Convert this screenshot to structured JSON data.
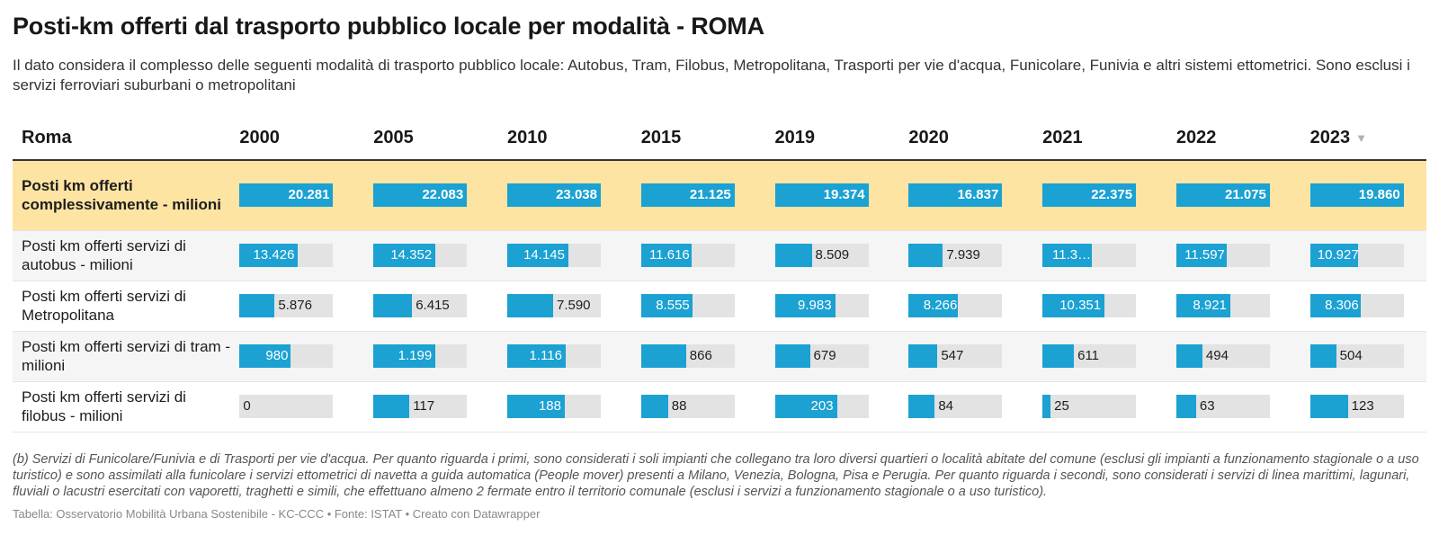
{
  "title": "Posti-km offerti dal trasporto pubblico locale per modalità - ROMA",
  "subtitle": "Il dato considera il complesso delle seguenti modalità di trasporto pubblico locale: Autobus, Tram, Filobus, Metropolitana, Trasporti per vie d'acqua, Funicolare, Funivia e altri sistemi ettometrici. Sono esclusi i servizi ferroviari suburbani o metropolitani",
  "notes": "(b) Servizi di Funicolare/Funivia e di Trasporti per vie d'acqua. Per quanto riguarda i primi, sono considerati i soli impianti che collegano tra loro diversi quartieri o località abitate del comune (esclusi gli impianti a funzionamento stagionale o a uso turistico) e sono assimilati alla funicolare i servizi ettometrici di navetta a guida automatica (People mover) presenti a Milano, Venezia, Bologna, Pisa e Perugia. Per quanto riguarda i secondi, sono considerati i servizi di linea marittimi, lagunari, fluviali o lacustri esercitati con vaporetti, traghetti e simili, che effettuano almeno 2 fermate entro il territorio comunale (esclusi i servizi a funzionamento stagionale o a uso turistico).",
  "footer": "Tabella: Osservatorio Mobilità Urbana Sostenibile - KC-CCC • Fonte: ISTAT • Creato con Datawrapper",
  "colors": {
    "bar": "#1ba1d2",
    "bar_bg": "#e3e3e3",
    "highlight": "#fde4a3"
  },
  "chart_data": {
    "type": "table",
    "row_header": "Roma",
    "columns": [
      "2000",
      "2005",
      "2010",
      "2015",
      "2019",
      "2020",
      "2021",
      "2022",
      "2023"
    ],
    "sorted_column": "2023",
    "sort_icon": "triangle-down-icon",
    "rows": [
      {
        "label": "Posti km offerti complessivamente - milioni",
        "highlight": true,
        "values": [
          20281,
          22083,
          23038,
          21125,
          19374,
          16837,
          22375,
          21075,
          19860
        ],
        "display": [
          "20.281",
          "22.083",
          "23.038",
          "21.125",
          "19.374",
          "16.837",
          "22.375",
          "21.075",
          "19.860"
        ]
      },
      {
        "label": "Posti km offerti servizi di autobus - milioni",
        "values": [
          13426,
          14352,
          14145,
          11616,
          8509,
          7939,
          11300,
          11597,
          10927
        ],
        "display": [
          "13.426",
          "14.352",
          "14.145",
          "11.616",
          "8.509",
          "7.939",
          "11.3…",
          "11.597",
          "10.927"
        ]
      },
      {
        "label": "Posti km offerti servizi di Metropolitana",
        "values": [
          5876,
          6415,
          7590,
          8555,
          9983,
          8266,
          10351,
          8921,
          8306
        ],
        "display": [
          "5.876",
          "6.415",
          "7.590",
          "8.555",
          "9.983",
          "8.266",
          "10.351",
          "8.921",
          "8.306"
        ]
      },
      {
        "label": "Posti km offerti servizi di tram - milioni",
        "values": [
          980,
          1199,
          1116,
          866,
          679,
          547,
          611,
          494,
          504
        ],
        "display": [
          "980",
          "1.199",
          "1.116",
          "866",
          "679",
          "547",
          "611",
          "494",
          "504"
        ]
      },
      {
        "label": "Posti km offerti servizi di filobus - milioni",
        "values": [
          0,
          117,
          188,
          88,
          203,
          84,
          25,
          63,
          123
        ],
        "display": [
          "0",
          "117",
          "188",
          "88",
          "203",
          "84",
          "25",
          "63",
          "123"
        ]
      }
    ]
  }
}
